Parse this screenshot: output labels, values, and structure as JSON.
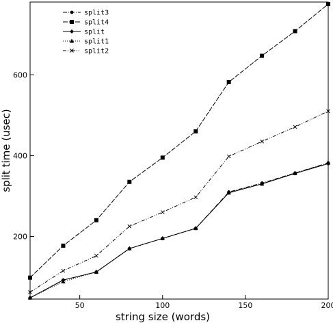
{
  "chart_data": {
    "type": "line",
    "xlabel": "string size (words)",
    "ylabel": "split time (usec)",
    "xlim": [
      20,
      200
    ],
    "ylim": [
      45,
      780
    ],
    "xticks": [
      50,
      100,
      150,
      200
    ],
    "yticks": [
      200,
      400,
      600
    ],
    "grid": false,
    "legend_position": "top-left",
    "x": [
      20,
      40,
      60,
      80,
      100,
      120,
      140,
      160,
      180,
      200
    ],
    "series": [
      {
        "name": "split3",
        "marker": "circle",
        "dash": "6,2,1,2",
        "values": [
          48,
          92,
          112,
          170,
          195,
          220,
          310,
          332,
          357,
          382
        ]
      },
      {
        "name": "split4",
        "marker": "square",
        "dash": "7,2",
        "values": [
          98,
          177,
          240,
          335,
          395,
          460,
          582,
          647,
          708,
          775
        ]
      },
      {
        "name": "split",
        "marker": "diamond",
        "dash": "",
        "values": [
          48,
          92,
          112,
          170,
          195,
          220,
          308,
          330,
          356,
          380
        ]
      },
      {
        "name": "split1",
        "marker": "triangle",
        "dash": "1,2",
        "values": [
          48,
          88,
          112,
          170,
          195,
          220,
          308,
          330,
          356,
          382
        ]
      },
      {
        "name": "split2",
        "marker": "x",
        "dash": "5,2,1,2,1,2",
        "values": [
          62,
          115,
          152,
          225,
          260,
          297,
          398,
          435,
          471,
          510
        ]
      }
    ]
  }
}
